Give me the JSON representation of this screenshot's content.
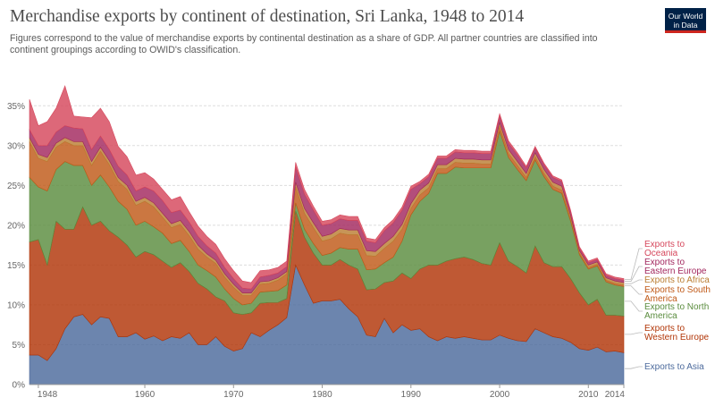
{
  "title": "Merchandise exports by continent of destination, Sri Lanka, 1948 to 2014",
  "subtitle": "Figures correspond to the value of merchandise exports by continental destination as a share of GDP. All partner countries are classified into continent groupings according to OWID's classification.",
  "logo": {
    "line1": "Our World",
    "line2": "in Data"
  },
  "chart_data": {
    "type": "area",
    "stacked": true,
    "x": [
      1947,
      1948,
      1949,
      1950,
      1951,
      1952,
      1953,
      1954,
      1955,
      1956,
      1957,
      1958,
      1959,
      1960,
      1961,
      1962,
      1963,
      1964,
      1965,
      1966,
      1967,
      1968,
      1969,
      1970,
      1971,
      1972,
      1973,
      1974,
      1975,
      1976,
      1977,
      1978,
      1979,
      1980,
      1981,
      1982,
      1983,
      1984,
      1985,
      1986,
      1987,
      1988,
      1989,
      1990,
      1991,
      1992,
      1993,
      1994,
      1995,
      1996,
      1997,
      1998,
      1999,
      2000,
      2001,
      2002,
      2003,
      2004,
      2005,
      2006,
      2007,
      2008,
      2009,
      2010,
      2011,
      2012,
      2013,
      2014
    ],
    "ylim": [
      0,
      37.5
    ],
    "yticks": [
      0,
      5,
      10,
      15,
      20,
      25,
      30,
      35
    ],
    "ytick_labels": [
      "0%",
      "5%",
      "10%",
      "15%",
      "20%",
      "25%",
      "30%",
      "35%"
    ],
    "xticks": [
      1948,
      1960,
      1970,
      1980,
      1990,
      2000,
      2010,
      2014
    ],
    "xtick_labels": [
      "1948",
      "1960",
      "1970",
      "1980",
      "1990",
      "2000",
      "2010",
      "2014"
    ],
    "grid": "horizontal",
    "legend": "right",
    "series": [
      {
        "name": "Exports to Asia",
        "color": "#4c6a9c",
        "values": [
          3.7,
          3.7,
          3.0,
          4.5,
          7.0,
          8.5,
          8.8,
          7.5,
          8.5,
          8.3,
          6.0,
          6.0,
          6.5,
          5.7,
          6.1,
          5.5,
          6.0,
          5.8,
          6.5,
          5.0,
          5.0,
          6.0,
          4.8,
          4.2,
          4.5,
          6.5,
          6.0,
          6.8,
          7.5,
          8.4,
          15.0,
          12.5,
          10.2,
          10.5,
          10.5,
          10.7,
          9.5,
          8.5,
          6.2,
          6.0,
          8.3,
          6.5,
          7.5,
          6.8,
          7.0,
          6.0,
          5.5,
          6.0,
          5.8,
          6.0,
          5.8,
          5.6,
          5.6,
          6.2,
          5.8,
          5.5,
          5.4,
          7.0,
          6.5,
          6.0,
          5.8,
          5.3,
          4.5,
          4.3,
          4.7,
          4.1,
          4.2,
          4.0
        ]
      },
      {
        "name": "Exports to Western Europe",
        "color": "#b13507",
        "values": [
          14.2,
          14.5,
          12.0,
          16.0,
          12.5,
          11.0,
          13.5,
          12.5,
          12.0,
          11.0,
          12.5,
          11.5,
          9.5,
          11.0,
          10.2,
          10.0,
          8.7,
          9.5,
          7.7,
          7.7,
          7.0,
          5.0,
          5.7,
          4.8,
          4.3,
          2.5,
          4.2,
          3.5,
          2.8,
          2.4,
          6.8,
          6.0,
          6.3,
          4.5,
          4.5,
          5.0,
          5.5,
          6.0,
          5.7,
          6.0,
          4.5,
          6.5,
          6.5,
          6.5,
          7.5,
          9.0,
          9.5,
          9.5,
          10.0,
          10.0,
          9.9,
          9.6,
          9.4,
          11.6,
          9.7,
          9.3,
          8.6,
          10.4,
          8.8,
          8.8,
          9.0,
          8.0,
          7.0,
          5.7,
          6.0,
          4.6,
          4.5,
          4.6
        ]
      },
      {
        "name": "Exports to North America",
        "color": "#5a8c3e",
        "values": [
          8.1,
          6.6,
          9.3,
          6.5,
          8.5,
          8.0,
          5.2,
          5.0,
          5.8,
          5.5,
          4.5,
          4.5,
          4.0,
          3.8,
          3.5,
          3.5,
          3.0,
          2.8,
          2.5,
          2.3,
          2.3,
          2.5,
          1.5,
          1.8,
          1.2,
          1.2,
          1.4,
          1.4,
          1.5,
          1.7,
          1.0,
          1.0,
          1.2,
          1.2,
          1.5,
          1.5,
          2.0,
          2.5,
          2.5,
          2.5,
          2.5,
          3.0,
          4.0,
          8.0,
          8.5,
          9.0,
          11.5,
          11.0,
          11.5,
          11.2,
          11.5,
          12.0,
          12.2,
          14.0,
          13.0,
          12.2,
          11.6,
          10.8,
          10.8,
          9.7,
          9.2,
          7.2,
          4.8,
          4.5,
          4.2,
          4.2,
          3.8,
          3.7
        ]
      },
      {
        "name": "Exports to South America",
        "color": "#c05917",
        "values": [
          4.5,
          3.6,
          3.7,
          2.8,
          2.5,
          2.5,
          2.5,
          2.5,
          3.0,
          2.8,
          2.5,
          2.5,
          2.5,
          2.5,
          2.5,
          2.0,
          2.0,
          2.0,
          2.0,
          2.0,
          1.7,
          1.7,
          1.5,
          1.4,
          1.2,
          1.0,
          1.0,
          1.0,
          1.3,
          1.4,
          2.0,
          2.0,
          2.0,
          1.8,
          1.8,
          1.8,
          1.8,
          1.8,
          1.8,
          1.6,
          1.8,
          2.0,
          1.5,
          0.8,
          0.8,
          0.7,
          0.6,
          0.6,
          0.6,
          0.6,
          0.6,
          0.5,
          0.5,
          0.6,
          0.5,
          0.5,
          0.4,
          0.4,
          0.4,
          0.4,
          0.4,
          0.3,
          0.2,
          0.2,
          0.2,
          0.2,
          0.2,
          0.2
        ]
      },
      {
        "name": "Exports to Africa",
        "color": "#bb7e33",
        "values": [
          0.5,
          0.5,
          0.5,
          0.5,
          0.5,
          0.5,
          0.5,
          0.5,
          0.5,
          0.5,
          0.5,
          0.5,
          0.5,
          0.5,
          0.5,
          0.5,
          0.5,
          0.5,
          0.5,
          0.5,
          0.4,
          0.4,
          0.4,
          0.4,
          0.3,
          0.3,
          0.3,
          0.3,
          0.3,
          0.3,
          0.6,
          0.6,
          0.6,
          0.6,
          0.6,
          0.6,
          0.6,
          0.6,
          0.6,
          0.6,
          0.6,
          0.6,
          0.6,
          0.6,
          0.6,
          0.6,
          0.5,
          0.5,
          0.5,
          0.5,
          0.5,
          0.5,
          0.5,
          0.5,
          0.5,
          0.5,
          0.5,
          0.5,
          0.5,
          0.5,
          0.5,
          0.4,
          0.3,
          0.3,
          0.3,
          0.3,
          0.3,
          0.3
        ]
      },
      {
        "name": "Exports to Eastern Europe",
        "color": "#a2275e",
        "values": [
          1.0,
          1.1,
          1.5,
          1.4,
          1.5,
          1.7,
          1.6,
          1.5,
          1.4,
          1.4,
          1.4,
          1.3,
          1.3,
          1.3,
          1.5,
          1.6,
          1.4,
          1.3,
          1.2,
          1.1,
          1.0,
          0.9,
          0.8,
          0.7,
          0.6,
          0.5,
          0.6,
          0.7,
          0.6,
          0.6,
          1.9,
          1.8,
          1.6,
          1.4,
          1.3,
          1.2,
          1.2,
          1.2,
          1.2,
          1.1,
          1.6,
          1.7,
          1.8,
          1.8,
          0.8,
          0.8,
          0.8,
          0.8,
          0.8,
          0.8,
          0.8,
          0.8,
          0.8,
          0.8,
          0.8,
          0.8,
          0.7,
          0.6,
          0.6,
          0.6,
          0.6,
          0.5,
          0.3,
          0.3,
          0.3,
          0.3,
          0.3,
          0.3
        ]
      },
      {
        "name": "Exports to Oceania",
        "color": "#d6475c",
        "values": [
          3.8,
          2.5,
          3.0,
          3.0,
          5.0,
          1.5,
          1.5,
          4.0,
          3.5,
          3.5,
          2.5,
          2.3,
          2.0,
          1.8,
          1.5,
          1.4,
          1.6,
          1.7,
          1.3,
          1.3,
          1.2,
          1.1,
          1.1,
          1.0,
          0.9,
          0.8,
          0.8,
          0.7,
          0.7,
          0.7,
          0.6,
          0.6,
          0.5,
          0.5,
          0.5,
          0.5,
          0.5,
          0.5,
          0.4,
          0.4,
          0.4,
          0.4,
          0.4,
          0.4,
          0.3,
          0.3,
          0.3,
          0.3,
          0.3,
          0.3,
          0.3,
          0.3,
          0.3,
          0.3,
          0.3,
          0.3,
          0.2,
          0.2,
          0.2,
          0.2,
          0.2,
          0.2,
          0.2,
          0.2,
          0.2,
          0.2,
          0.2,
          0.2
        ]
      }
    ]
  }
}
